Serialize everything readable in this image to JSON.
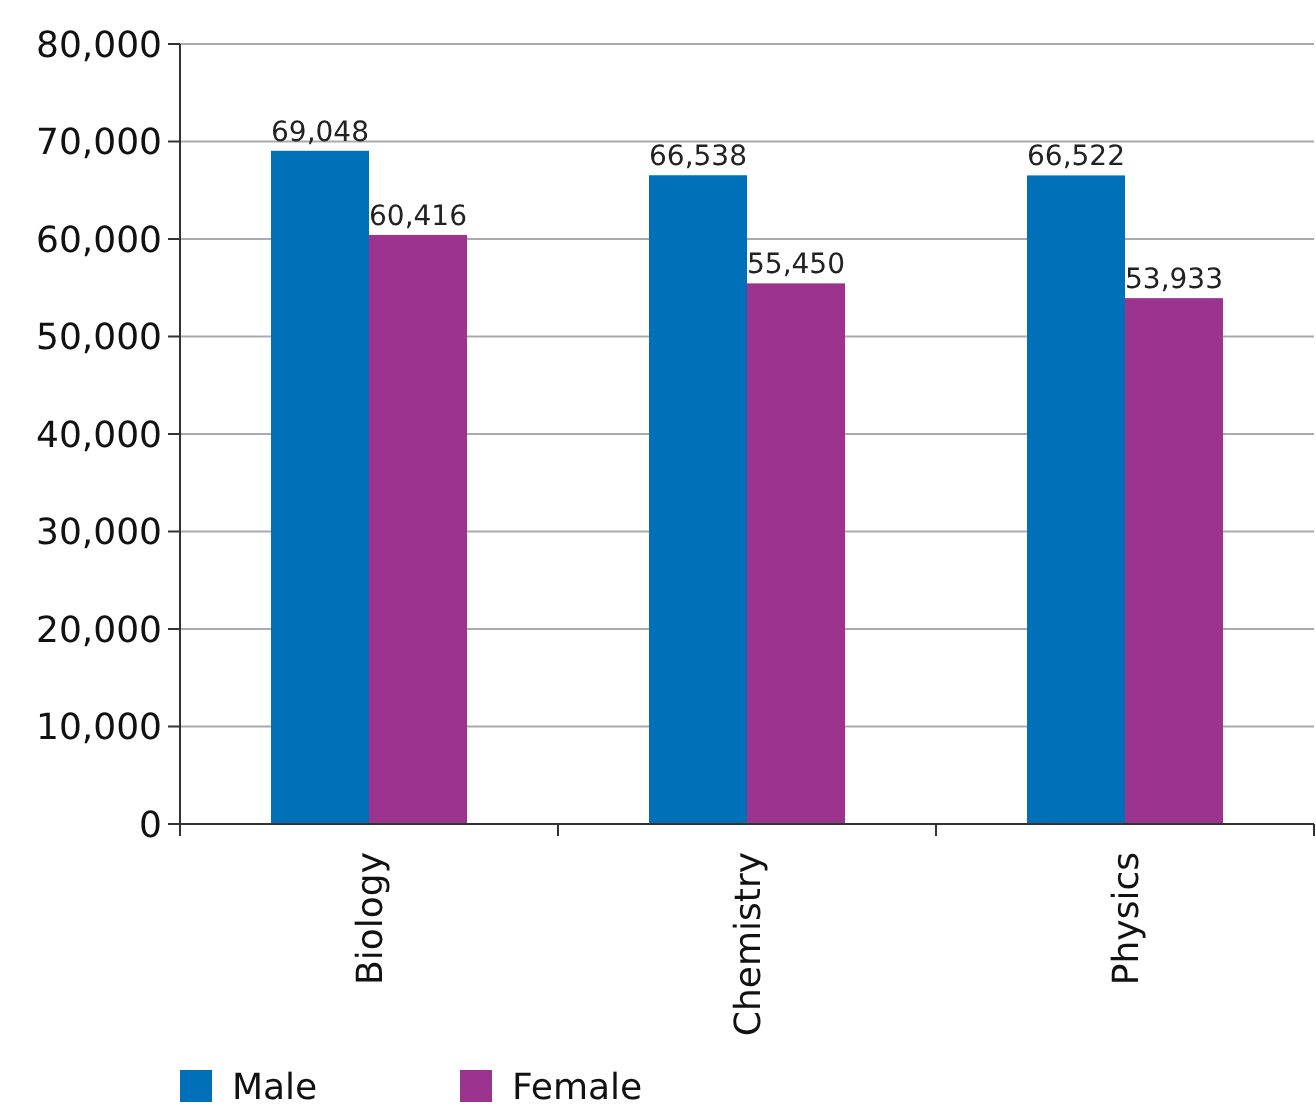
{
  "chart_data": {
    "type": "bar",
    "categories": [
      "Biology",
      "Chemistry",
      "Physics"
    ],
    "series": [
      {
        "name": "Male",
        "color": "#0070b8",
        "values": [
          69048,
          66538,
          66522
        ],
        "value_labels": [
          "69,048",
          "66,538",
          "66,522"
        ]
      },
      {
        "name": "Female",
        "color": "#9b338f",
        "values": [
          60416,
          55450,
          53933
        ],
        "value_labels": [
          "60,416",
          "55,450",
          "53,933"
        ]
      }
    ],
    "ylim": [
      0,
      80000
    ],
    "yticks": [
      0,
      {
        "value": 10000,
        "label": "10,000"
      },
      {
        "value": 20000,
        "label": "20,000"
      },
      {
        "value": 30000,
        "label": "30,000"
      },
      {
        "value": 40000,
        "label": "40,000"
      },
      {
        "value": 50000,
        "label": "50,000"
      },
      {
        "value": 60000,
        "label": "60,000"
      },
      {
        "value": 70000,
        "label": "70,000"
      },
      {
        "value": 80000,
        "label": "80,000"
      }
    ],
    "grid": "y",
    "legend": "bottom"
  }
}
